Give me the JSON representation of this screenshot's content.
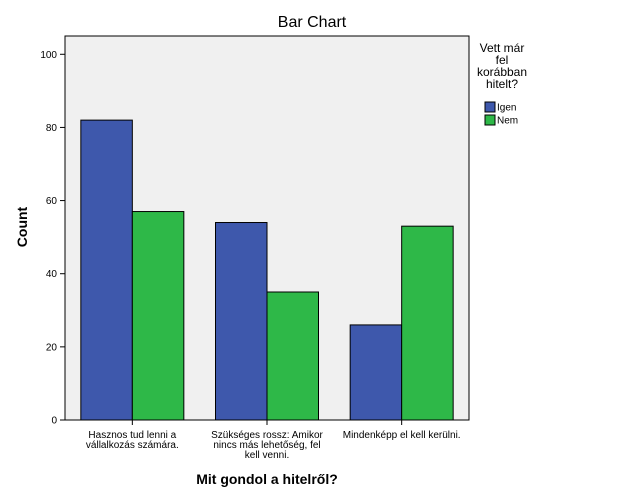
{
  "chart_data": {
    "type": "bar",
    "title": "Bar Chart",
    "xlabel": "Mit gondol a hitelről?",
    "ylabel": "Count",
    "ylim": [
      0,
      105
    ],
    "yticks": [
      0,
      20,
      40,
      60,
      80,
      100
    ],
    "categories": [
      [
        "Hasznos tud lenni a",
        "vállalkozás számára."
      ],
      [
        "Szükséges rossz: Amikor",
        "nincs más lehetőség, fel",
        "kell venni."
      ],
      [
        "Mindenképp el kell kerülni."
      ]
    ],
    "legend": {
      "title": [
        "Vett már",
        "fel",
        "korábban",
        "hitelt?"
      ],
      "position": "right"
    },
    "series": [
      {
        "name": "Igen",
        "color": "#3e58ac",
        "values": [
          82,
          54,
          26
        ]
      },
      {
        "name": "Nem",
        "color": "#2eb848",
        "values": [
          57,
          35,
          53
        ]
      }
    ],
    "background": "#f0f0f0"
  }
}
